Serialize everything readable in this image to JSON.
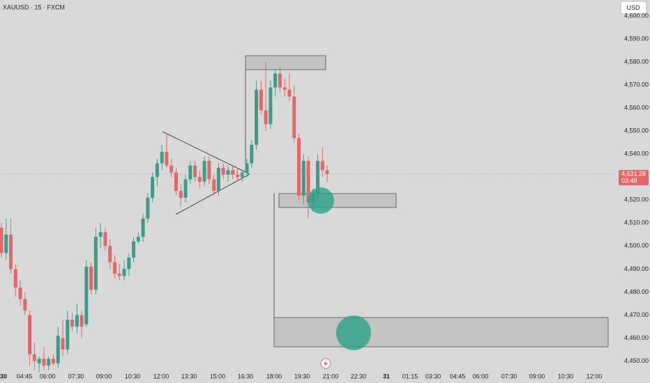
{
  "chart_data": {
    "type": "candlestick",
    "title": "XAUUSD · 15 · FXCM",
    "currency": "USD",
    "x": [
      "03:30",
      "03:45",
      "04:00",
      "04:15",
      "04:30",
      "04:45",
      "05:00",
      "05:15",
      "05:30",
      "05:45",
      "06:00",
      "06:15",
      "06:30",
      "06:45",
      "07:00",
      "07:15",
      "07:30",
      "07:45",
      "08:00",
      "08:15",
      "08:30",
      "08:45",
      "09:00",
      "09:15",
      "09:30",
      "09:45",
      "10:00",
      "10:15",
      "10:30",
      "10:45",
      "11:00",
      "11:15",
      "11:30",
      "11:45",
      "12:00",
      "12:15",
      "12:30",
      "12:45",
      "13:00",
      "13:15",
      "13:30",
      "13:45",
      "14:00",
      "14:15",
      "14:30",
      "14:45",
      "15:00",
      "15:15",
      "15:30",
      "15:45",
      "16:00",
      "16:15",
      "16:30",
      "16:45",
      "17:00",
      "17:15",
      "17:30",
      "17:45",
      "18:00",
      "18:15",
      "18:30",
      "18:45",
      "19:00",
      "19:15",
      "19:30",
      "19:45",
      "20:00",
      "20:15",
      "20:30",
      "20:45"
    ],
    "open": [
      4508,
      4497,
      4505,
      4490,
      4482,
      4477,
      4470,
      4453,
      4449,
      4451,
      4448,
      4451,
      4449,
      4460,
      4455,
      4468,
      4465,
      4470,
      4466,
      4491,
      4481,
      4504,
      4506,
      4500,
      4493,
      4488,
      4487,
      4490,
      4495,
      4502,
      4504,
      4512,
      4521,
      4530,
      4536,
      4541,
      4535,
      4532,
      4524,
      4521,
      4529,
      4535,
      4530,
      4528,
      4537,
      4529,
      4524,
      4534,
      4531,
      4533,
      4531,
      4530,
      4532,
      4536,
      4544,
      4568,
      4559,
      4553,
      4569,
      4575,
      4569,
      4568,
      4565,
      4547,
      4522,
      4537,
      4519,
      4523,
      4537,
      4533
    ],
    "high": [
      4510,
      4512,
      4512,
      4492,
      4485,
      4480,
      4472,
      4458,
      4452,
      4456,
      4452,
      4453,
      4465,
      4468,
      4472,
      4471,
      4475,
      4472,
      4494,
      4493,
      4508,
      4510,
      4508,
      4503,
      4496,
      4492,
      4494,
      4497,
      4504,
      4506,
      4514,
      4523,
      4532,
      4538,
      4544,
      4549,
      4538,
      4534,
      4527,
      4531,
      4537,
      4537,
      4533,
      4539,
      4539,
      4531,
      4536,
      4536,
      4535,
      4535,
      4534,
      4533,
      4538,
      4546,
      4572,
      4572,
      4580,
      4572,
      4577,
      4578,
      4573,
      4575,
      4570,
      4549,
      4540,
      4539,
      4525,
      4540,
      4543,
      4535
    ],
    "low": [
      4495,
      4494,
      4488,
      4478,
      4474,
      4470,
      4448,
      4446,
      4445,
      4446,
      4446,
      4448,
      4447,
      4452,
      4453,
      4463,
      4462,
      4460,
      4465,
      4479,
      4479,
      4499,
      4498,
      4490,
      4486,
      4485,
      4485,
      4487,
      4493,
      4501,
      4502,
      4510,
      4519,
      4526,
      4533,
      4534,
      4530,
      4522,
      4517,
      4519,
      4527,
      4528,
      4525,
      4526,
      4527,
      4522,
      4522,
      4529,
      4528,
      4529,
      4528,
      4528,
      4530,
      4534,
      4542,
      4557,
      4550,
      4551,
      4565,
      4567,
      4565,
      4563,
      4545,
      4520,
      4518,
      4512,
      4515,
      4520,
      4530,
      4528
    ],
    "close": [
      4497,
      4505,
      4490,
      4482,
      4477,
      4472,
      4453,
      4450,
      4451,
      4448,
      4451,
      4449,
      4461,
      4455,
      4468,
      4465,
      4470,
      4465,
      4491,
      4481,
      4504,
      4506,
      4500,
      4493,
      4488,
      4487,
      4490,
      4495,
      4502,
      4504,
      4512,
      4521,
      4530,
      4536,
      4541,
      4535,
      4532,
      4524,
      4521,
      4529,
      4535,
      4530,
      4528,
      4537,
      4529,
      4524,
      4534,
      4531,
      4533,
      4531,
      4530,
      4532,
      4536,
      4544,
      4568,
      4559,
      4553,
      4569,
      4575,
      4569,
      4568,
      4565,
      4547,
      4522,
      4537,
      4519,
      4523,
      4537,
      4533,
      4531.28
    ],
    "up_color": "#3d9c87",
    "down_color": "#e0676a",
    "ylim": [
      4445,
      4607
    ],
    "yticks": [
      {
        "value": 4450,
        "label": "4,450.00"
      },
      {
        "value": 4460,
        "label": "4,460.00"
      },
      {
        "value": 4470,
        "label": "4,470.00"
      },
      {
        "value": 4480,
        "label": "4,480.00"
      },
      {
        "value": 4490,
        "label": "4,490.00"
      },
      {
        "value": 4500,
        "label": "4,500.00"
      },
      {
        "value": 4510,
        "label": "4,510.00"
      },
      {
        "value": 4520,
        "label": "4,520.00"
      },
      {
        "value": 4530,
        "label": "4,530.00"
      },
      {
        "value": 4540,
        "label": "4,540.00"
      },
      {
        "value": 4550,
        "label": "4,550.00"
      },
      {
        "value": 4560,
        "label": "4,560.00"
      },
      {
        "value": 4570,
        "label": "4,570.00"
      },
      {
        "value": 4580,
        "label": "4,580.00"
      },
      {
        "value": 4590,
        "label": "4,590.00"
      },
      {
        "value": 4600,
        "label": "4,600.00"
      }
    ],
    "xticks": [
      "30",
      "04:45",
      "06:00",
      "07:30",
      "09:00",
      "10:30",
      "12:00",
      "13:30",
      "15:00",
      "16:30",
      "18:00",
      "19:30",
      "21:00",
      "22:30",
      "31",
      "01:15",
      "03:30",
      "04:45",
      "06:00",
      "07:30",
      "09:00",
      "10:30",
      "12:00"
    ],
    "grid": false,
    "last_price": {
      "value": 4531.28,
      "label": "4,531.28"
    },
    "countdown": "03:48"
  }
}
